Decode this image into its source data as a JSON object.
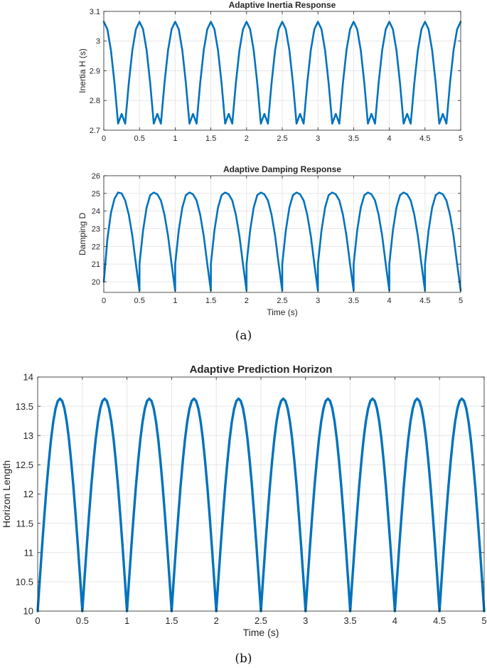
{
  "figure": {
    "caption_a": "(a)",
    "caption_b": "(b)"
  },
  "colors": {
    "series": "#0072BD",
    "grid": "#e6e6e6",
    "axis": "#262626"
  },
  "chart_data": [
    {
      "id": "inertia",
      "type": "line",
      "title": "Adaptive Inertia Response",
      "xlabel": "",
      "ylabel": "Inertia H (s)",
      "xlim": [
        0,
        5
      ],
      "ylim": [
        2.7,
        3.1
      ],
      "xticks": [
        0,
        0.5,
        1,
        1.5,
        2,
        2.5,
        3,
        3.5,
        4,
        4.5,
        5
      ],
      "xtick_labels": [
        "0",
        "0.5",
        "1",
        "1.5",
        "2",
        "2.5",
        "3",
        "3.5",
        "4",
        "4.5",
        "5"
      ],
      "yticks": [
        2.7,
        2.8,
        2.9,
        3,
        3.1
      ],
      "ytick_labels": [
        "2.7",
        "2.8",
        "2.9",
        "3",
        "3.1"
      ],
      "grid": true,
      "series": [
        {
          "x": [
            0,
            0.05,
            0.1,
            0.15,
            0.2,
            0.25,
            0.3,
            0.35,
            0.4,
            0.45,
            0.5,
            0.55,
            0.6,
            0.65,
            0.7,
            0.75,
            0.8,
            0.85,
            0.9,
            0.95,
            1.0,
            1.05,
            1.1,
            1.15,
            1.2,
            1.25,
            1.3,
            1.35,
            1.4,
            1.45,
            1.5,
            1.55,
            1.6,
            1.65,
            1.7,
            1.75,
            1.8,
            1.85,
            1.9,
            1.95,
            2.0,
            2.05,
            2.1,
            2.15,
            2.2,
            2.25,
            2.3,
            2.35,
            2.4,
            2.45,
            2.5,
            2.55,
            2.6,
            2.65,
            2.7,
            2.75,
            2.8,
            2.85,
            2.9,
            2.95,
            3.0,
            3.05,
            3.1,
            3.15,
            3.2,
            3.25,
            3.3,
            3.35,
            3.4,
            3.45,
            3.5,
            3.55,
            3.6,
            3.65,
            3.7,
            3.75,
            3.8,
            3.85,
            3.9,
            3.95,
            4.0,
            4.05,
            4.1,
            4.15,
            4.2,
            4.25,
            4.3,
            4.35,
            4.4,
            4.45,
            4.5,
            4.55,
            4.6,
            4.65,
            4.7,
            4.75,
            4.8,
            4.85,
            4.9,
            4.95,
            5.0
          ],
          "y": [
            3.065,
            3.04,
            2.969,
            2.858,
            2.722,
            2.755,
            2.722,
            2.858,
            2.969,
            3.04,
            3.065,
            3.04,
            2.969,
            2.858,
            2.722,
            2.755,
            2.722,
            2.858,
            2.969,
            3.04,
            3.065,
            3.04,
            2.969,
            2.858,
            2.722,
            2.755,
            2.722,
            2.858,
            2.969,
            3.04,
            3.065,
            3.04,
            2.969,
            2.858,
            2.722,
            2.755,
            2.722,
            2.858,
            2.969,
            3.04,
            3.065,
            3.04,
            2.969,
            2.858,
            2.722,
            2.755,
            2.722,
            2.858,
            2.969,
            3.04,
            3.065,
            3.04,
            2.969,
            2.858,
            2.722,
            2.755,
            2.722,
            2.858,
            2.969,
            3.04,
            3.065,
            3.04,
            2.969,
            2.858,
            2.722,
            2.755,
            2.722,
            2.858,
            2.969,
            3.04,
            3.065,
            3.04,
            2.969,
            2.858,
            2.722,
            2.755,
            2.722,
            2.858,
            2.969,
            3.04,
            3.065,
            3.04,
            2.969,
            2.858,
            2.722,
            2.755,
            2.722,
            2.858,
            2.969,
            3.04,
            3.065,
            3.04,
            2.969,
            2.858,
            2.722,
            2.755,
            2.722,
            2.858,
            2.969,
            3.04,
            3.065
          ]
        }
      ]
    },
    {
      "id": "damping",
      "type": "line",
      "title": "Adaptive Damping Response",
      "xlabel": "Time (s)",
      "ylabel": "Damping D",
      "xlim": [
        0,
        5
      ],
      "ylim": [
        19.4,
        26
      ],
      "xticks": [
        0,
        0.5,
        1,
        1.5,
        2,
        2.5,
        3,
        3.5,
        4,
        4.5,
        5
      ],
      "xtick_labels": [
        "0",
        "0.5",
        "1",
        "1.5",
        "2",
        "2.5",
        "3",
        "3.5",
        "4",
        "4.5",
        "5"
      ],
      "yticks": [
        20,
        21,
        22,
        23,
        24,
        25,
        26
      ],
      "ytick_labels": [
        "20",
        "21",
        "22",
        "23",
        "24",
        "25",
        "26"
      ],
      "grid": true,
      "series": [
        {
          "x": [
            0,
            0.05,
            0.1,
            0.15,
            0.2,
            0.25,
            0.3,
            0.35,
            0.4,
            0.45,
            0.5,
            0.5,
            0.55,
            0.6,
            0.65,
            0.7,
            0.75,
            0.8,
            0.85,
            0.9,
            0.95,
            1.0,
            1.0,
            1.05,
            1.1,
            1.15,
            1.2,
            1.25,
            1.3,
            1.35,
            1.4,
            1.45,
            1.5,
            1.5,
            1.55,
            1.6,
            1.65,
            1.7,
            1.75,
            1.8,
            1.85,
            1.9,
            1.95,
            2.0,
            2.0,
            2.05,
            2.1,
            2.15,
            2.2,
            2.25,
            2.3,
            2.35,
            2.4,
            2.45,
            2.5,
            2.5,
            2.55,
            2.6,
            2.65,
            2.7,
            2.75,
            2.8,
            2.85,
            2.9,
            2.95,
            3.0,
            3.0,
            3.05,
            3.1,
            3.15,
            3.2,
            3.25,
            3.3,
            3.35,
            3.4,
            3.45,
            3.5,
            3.5,
            3.55,
            3.6,
            3.65,
            3.7,
            3.75,
            3.8,
            3.85,
            3.9,
            3.95,
            4.0,
            4.0,
            4.05,
            4.1,
            4.15,
            4.2,
            4.25,
            4.3,
            4.35,
            4.4,
            4.45,
            4.5,
            4.5,
            4.55,
            4.6,
            4.65,
            4.7,
            4.75,
            4.8,
            4.85,
            4.9,
            4.95,
            5.0
          ],
          "y": [
            20.0,
            22.4,
            23.9,
            24.7,
            25.05,
            25.0,
            24.6,
            23.8,
            22.6,
            21.0,
            19.5,
            21.0,
            22.9,
            24.2,
            24.9,
            25.05,
            24.95,
            24.6,
            23.8,
            22.6,
            21.0,
            19.5,
            21.0,
            22.9,
            24.2,
            24.9,
            25.05,
            24.95,
            24.6,
            23.8,
            22.6,
            21.0,
            19.5,
            21.0,
            22.9,
            24.2,
            24.9,
            25.05,
            24.95,
            24.6,
            23.8,
            22.6,
            21.0,
            19.5,
            21.0,
            22.9,
            24.2,
            24.9,
            25.05,
            24.95,
            24.6,
            23.8,
            22.6,
            21.0,
            19.5,
            21.0,
            22.9,
            24.2,
            24.9,
            25.05,
            24.95,
            24.6,
            23.8,
            22.6,
            21.0,
            19.5,
            21.0,
            22.9,
            24.2,
            24.9,
            25.05,
            24.95,
            24.6,
            23.8,
            22.6,
            21.0,
            19.5,
            21.0,
            22.9,
            24.2,
            24.9,
            25.05,
            24.95,
            24.6,
            23.8,
            22.6,
            21.0,
            19.5,
            21.0,
            22.9,
            24.2,
            24.9,
            25.05,
            24.95,
            24.6,
            23.8,
            22.6,
            21.0,
            19.5,
            21.0,
            22.9,
            24.2,
            24.9,
            25.05,
            24.95,
            24.6,
            23.8,
            22.6,
            21.0,
            19.5
          ]
        }
      ]
    },
    {
      "id": "horizon",
      "type": "line",
      "title": "Adaptive Prediction Horizon",
      "xlabel": "Time (s)",
      "ylabel": "Horizon Length",
      "xlim": [
        0,
        5
      ],
      "ylim": [
        10,
        14
      ],
      "xticks": [
        0,
        0.5,
        1,
        1.5,
        2,
        2.5,
        3,
        3.5,
        4,
        4.5,
        5
      ],
      "xtick_labels": [
        "0",
        "0.5",
        "1",
        "1.5",
        "2",
        "2.5",
        "3",
        "3.5",
        "4",
        "4.5",
        "5"
      ],
      "yticks": [
        10,
        10.5,
        11,
        11.5,
        12,
        12.5,
        13,
        13.5,
        14
      ],
      "ytick_labels": [
        "10",
        "10.5",
        "11",
        "11.5",
        "12",
        "12.5",
        "13",
        "13.5",
        "14"
      ],
      "grid": true,
      "series": [
        {
          "x": [
            0,
            0.025,
            0.05,
            0.075,
            0.1,
            0.125,
            0.15,
            0.175,
            0.2,
            0.225,
            0.25,
            0.275,
            0.3,
            0.325,
            0.35,
            0.375,
            0.4,
            0.425,
            0.45,
            0.475,
            0.5,
            0.525,
            0.55,
            0.575,
            0.6,
            0.625,
            0.65,
            0.675,
            0.7,
            0.725,
            0.75,
            0.775,
            0.8,
            0.825,
            0.85,
            0.875,
            0.9,
            0.925,
            0.95,
            0.975,
            1.0,
            1.025,
            1.05,
            1.075,
            1.1,
            1.125,
            1.15,
            1.175,
            1.2,
            1.225,
            1.25,
            1.275,
            1.3,
            1.325,
            1.35,
            1.375,
            1.4,
            1.425,
            1.45,
            1.475,
            1.5,
            1.525,
            1.55,
            1.575,
            1.6,
            1.625,
            1.65,
            1.675,
            1.7,
            1.725,
            1.75,
            1.775,
            1.8,
            1.825,
            1.85,
            1.875,
            1.9,
            1.925,
            1.95,
            1.975,
            2.0,
            2.025,
            2.05,
            2.075,
            2.1,
            2.125,
            2.15,
            2.175,
            2.2,
            2.225,
            2.25,
            2.275,
            2.3,
            2.325,
            2.35,
            2.375,
            2.4,
            2.425,
            2.45,
            2.475,
            2.5,
            2.525,
            2.55,
            2.575,
            2.6,
            2.625,
            2.65,
            2.675,
            2.7,
            2.725,
            2.75,
            2.775,
            2.8,
            2.825,
            2.85,
            2.875,
            2.9,
            2.925,
            2.95,
            2.975,
            3.0,
            3.025,
            3.05,
            3.075,
            3.1,
            3.125,
            3.15,
            3.175,
            3.2,
            3.225,
            3.25,
            3.275,
            3.3,
            3.325,
            3.35,
            3.375,
            3.4,
            3.425,
            3.45,
            3.475,
            3.5,
            3.525,
            3.55,
            3.575,
            3.6,
            3.625,
            3.65,
            3.675,
            3.7,
            3.725,
            3.75,
            3.775,
            3.8,
            3.825,
            3.85,
            3.875,
            3.9,
            3.925,
            3.95,
            3.975,
            4.0,
            4.025,
            4.05,
            4.075,
            4.1,
            4.125,
            4.15,
            4.175,
            4.2,
            4.225,
            4.25,
            4.275,
            4.3,
            4.325,
            4.35,
            4.375,
            4.4,
            4.425,
            4.45,
            4.475,
            4.5,
            4.525,
            4.55,
            4.575,
            4.6,
            4.625,
            4.65,
            4.675,
            4.7,
            4.725,
            4.75,
            4.775,
            4.8,
            4.825,
            4.85,
            4.875,
            4.9,
            4.925,
            4.95,
            4.975,
            5.0
          ],
          "y": [
            10.0,
            10.57,
            11.12,
            11.64,
            12.13,
            12.56,
            12.94,
            13.24,
            13.46,
            13.59,
            13.63,
            13.59,
            13.46,
            13.24,
            12.94,
            12.56,
            12.13,
            11.64,
            11.12,
            10.57,
            10.0,
            10.57,
            11.12,
            11.64,
            12.13,
            12.56,
            12.94,
            13.24,
            13.46,
            13.59,
            13.63,
            13.59,
            13.46,
            13.24,
            12.94,
            12.56,
            12.13,
            11.64,
            11.12,
            10.57,
            10.0,
            10.57,
            11.12,
            11.64,
            12.13,
            12.56,
            12.94,
            13.24,
            13.46,
            13.59,
            13.63,
            13.59,
            13.46,
            13.24,
            12.94,
            12.56,
            12.13,
            11.64,
            11.12,
            10.57,
            10.0,
            10.57,
            11.12,
            11.64,
            12.13,
            12.56,
            12.94,
            13.24,
            13.46,
            13.59,
            13.63,
            13.59,
            13.46,
            13.24,
            12.94,
            12.56,
            12.13,
            11.64,
            11.12,
            10.57,
            10.0,
            10.57,
            11.12,
            11.64,
            12.13,
            12.56,
            12.94,
            13.24,
            13.46,
            13.59,
            13.63,
            13.59,
            13.46,
            13.24,
            12.94,
            12.56,
            12.13,
            11.64,
            11.12,
            10.57,
            10.0,
            10.57,
            11.12,
            11.64,
            12.13,
            12.56,
            12.94,
            13.24,
            13.46,
            13.59,
            13.63,
            13.59,
            13.46,
            13.24,
            12.94,
            12.56,
            12.13,
            11.64,
            11.12,
            10.57,
            10.0,
            10.57,
            11.12,
            11.64,
            12.13,
            12.56,
            12.94,
            13.24,
            13.46,
            13.59,
            13.63,
            13.59,
            13.46,
            13.24,
            12.94,
            12.56,
            12.13,
            11.64,
            11.12,
            10.57,
            10.0,
            10.57,
            11.12,
            11.64,
            12.13,
            12.56,
            12.94,
            13.24,
            13.46,
            13.59,
            13.63,
            13.59,
            13.46,
            13.24,
            12.94,
            12.56,
            12.13,
            11.64,
            11.12,
            10.57,
            10.0,
            10.57,
            11.12,
            11.64,
            12.13,
            12.56,
            12.94,
            13.24,
            13.46,
            13.59,
            13.63,
            13.59,
            13.46,
            13.24,
            12.94,
            12.56,
            12.13,
            11.64,
            11.12,
            10.57,
            10.0,
            10.57,
            11.12,
            11.64,
            12.13,
            12.56,
            12.94,
            13.24,
            13.46,
            13.59,
            13.63,
            13.59,
            13.46,
            13.24,
            12.94,
            12.56,
            12.13,
            11.64,
            11.12,
            10.57,
            10.0
          ]
        }
      ]
    }
  ]
}
